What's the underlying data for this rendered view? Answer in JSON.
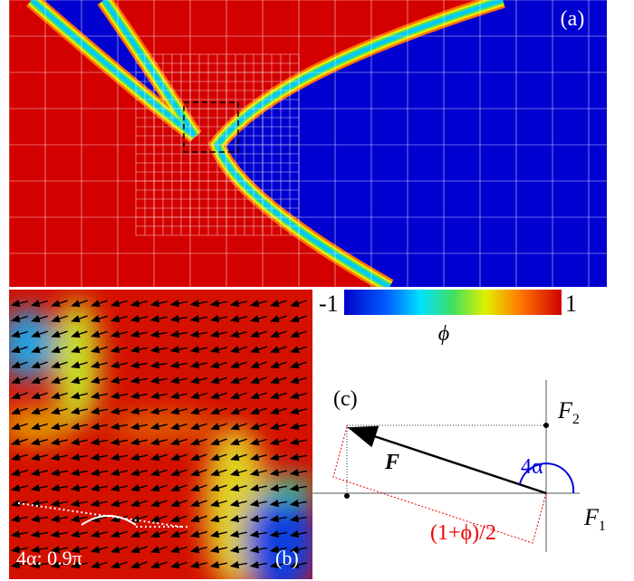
{
  "panel_a": {
    "label": "(a)"
  },
  "panel_b": {
    "label": "(b)",
    "angle_note": "4α: 0.9π"
  },
  "colorbar": {
    "min_label": "-1",
    "max_label": "1",
    "symbol": "ϕ"
  },
  "panel_c": {
    "label": "(c)",
    "vector": "F",
    "axis_y": {
      "base": "F",
      "sub": "2"
    },
    "axis_x": {
      "base": "F",
      "sub": "1"
    },
    "angle": "4α",
    "projection": "(1+ϕ)/2"
  }
}
